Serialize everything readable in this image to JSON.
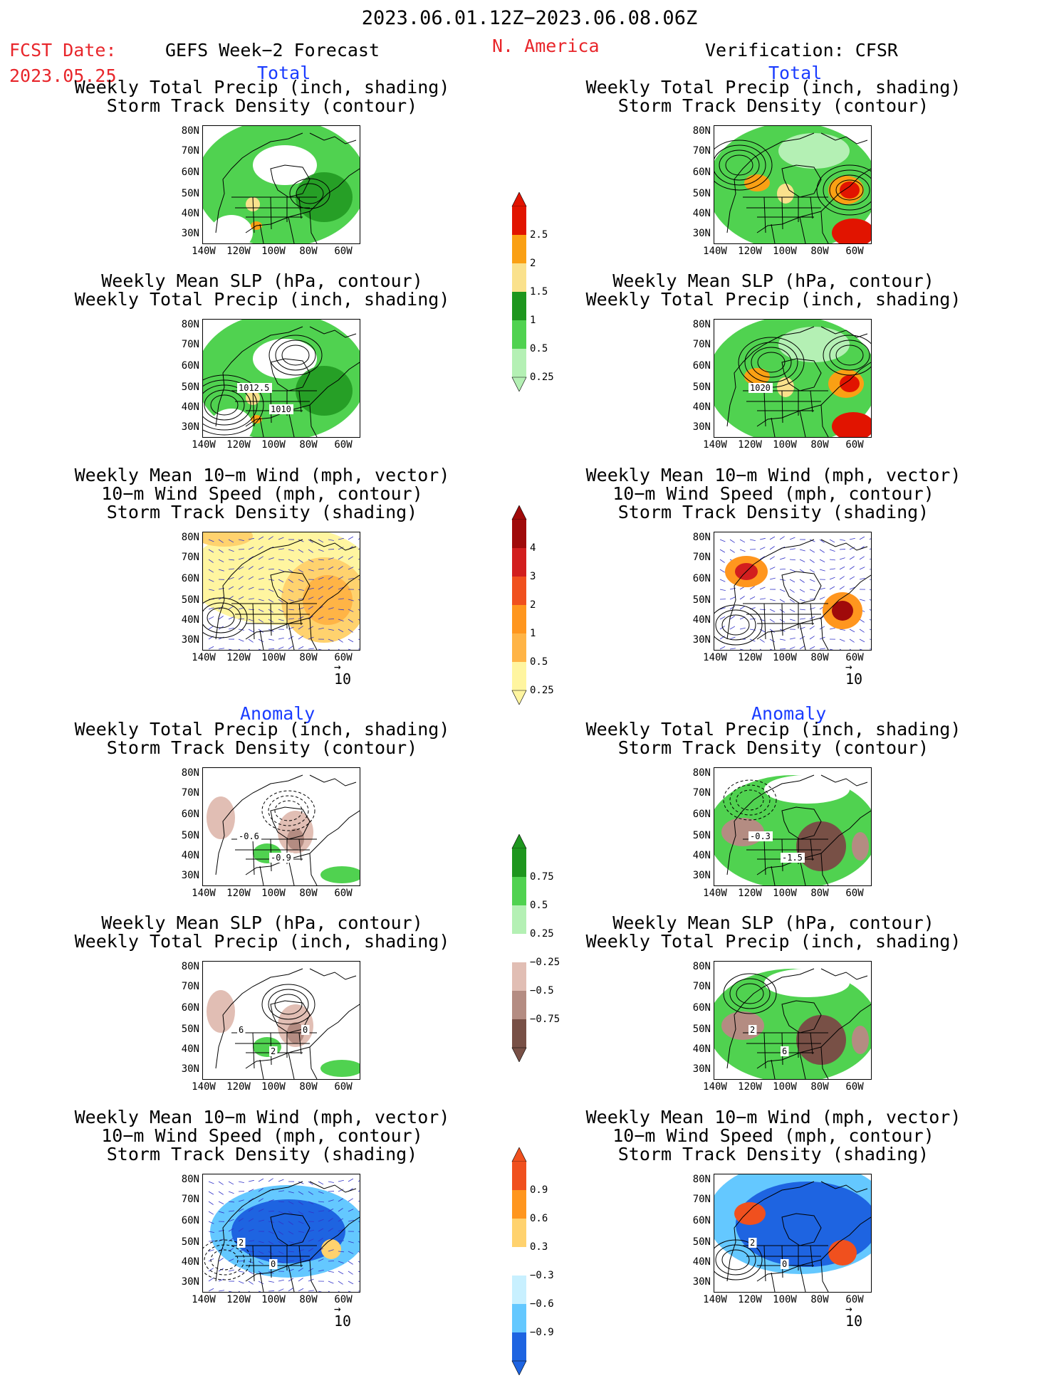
{
  "header": {
    "date_range": "2023.06.01.12Z−2023.06.08.06Z",
    "fcst_label": "FCST Date:",
    "fcst_date": "2023.05.25",
    "left_title": "GEFS Week−2 Forecast",
    "region": "N. America",
    "right_title": "Verification: CFSR"
  },
  "sections": {
    "total": "Total",
    "anomaly": "Anomaly"
  },
  "panel_titles": {
    "precip_track": [
      "Weekly Total Precip (inch, shading)",
      "Storm Track Density (contour)"
    ],
    "slp_precip": [
      "Weekly Mean SLP (hPa, contour)",
      "Weekly Total Precip (inch, shading)"
    ],
    "wind_track": [
      "Weekly Mean 10−m Wind (mph, vector)",
      "10−m Wind Speed (mph, contour)",
      "Storm Track Density (shading)"
    ]
  },
  "axes": {
    "lat": [
      "80N",
      "70N",
      "60N",
      "50N",
      "40N",
      "30N"
    ],
    "lon": [
      "140W",
      "120W",
      "100W",
      "80W",
      "60W"
    ]
  },
  "contour_labels": {
    "fc_slp_total": [
      "1012.5",
      "1010"
    ],
    "vf_slp_total": [
      "1020"
    ],
    "fc_precip_anom": [
      "-0.6",
      "-0.9"
    ],
    "vf_precip_anom": [
      "-0.3",
      "-1.5"
    ],
    "fc_slp_anom": [
      "6",
      "2",
      "0"
    ],
    "vf_slp_anom": [
      "2",
      "6"
    ],
    "fc_wind_anom": [
      "2",
      "0"
    ],
    "vf_wind_anom": [
      "2",
      "0"
    ]
  },
  "vector_ref": "10",
  "colorbars": {
    "precip_total": [
      "2.5",
      "2",
      "1.5",
      "1",
      "0.5",
      "0.25"
    ],
    "track_total": [
      "4",
      "3",
      "2",
      "1",
      "0.5",
      "0.25"
    ],
    "precip_anom": [
      "0.75",
      "0.5",
      "0.25",
      "−0.25",
      "−0.5",
      "−0.75"
    ],
    "track_anom": [
      "0.9",
      "0.6",
      "0.3",
      "−0.3",
      "−0.6",
      "−0.9"
    ]
  },
  "colors": {
    "precip_green_light": "#b4f0b4",
    "precip_green": "#50d250",
    "precip_green_dark": "#1e961e",
    "precip_yellow": "#fae18c",
    "precip_orange": "#faa014",
    "precip_red": "#e11400",
    "anom_brown_light": "#e1beb4",
    "anom_brown": "#b48c82",
    "anom_brown_dark": "#785046",
    "track_yellow_light": "#fff5a0",
    "track_yellow": "#ffd26e",
    "track_orange_light": "#ffb446",
    "track_orange": "#ff961e",
    "track_red_orange": "#f0501e",
    "track_red": "#d21e1e",
    "track_darkred": "#a00a0a",
    "anom_blue_light": "#c8f0ff",
    "anom_blue": "#64c8ff",
    "anom_blue_dark": "#1e64e1",
    "title_red": "#e8262b",
    "title_blue": "#1a3cff"
  }
}
